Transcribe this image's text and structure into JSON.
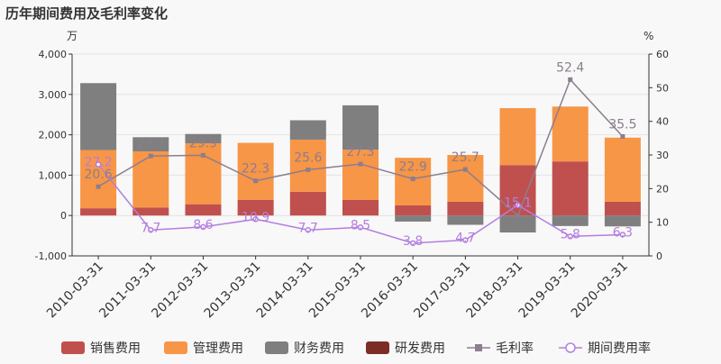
{
  "chart_data": {
    "type": "bar",
    "title": "历年期间费用及毛利率变化",
    "left_unit": "万",
    "right_unit": "%",
    "categories": [
      "2010-03-31",
      "2011-03-31",
      "2012-03-31",
      "2013-03-31",
      "2014-03-31",
      "2015-03-31",
      "2016-03-31",
      "2017-03-31",
      "2018-03-31",
      "2019-03-31",
      "2020-03-31"
    ],
    "left_axis": {
      "min": -1000,
      "max": 4000,
      "ticks": [
        -1000,
        0,
        1000,
        2000,
        3000,
        4000
      ],
      "tick_labels": [
        "-1,000",
        "0",
        "1,000",
        "2,000",
        "3,000",
        "4,000"
      ]
    },
    "right_axis": {
      "min": 0,
      "max": 60,
      "ticks": [
        0,
        10,
        20,
        30,
        40,
        50,
        60
      ],
      "tick_labels": [
        "0",
        "10",
        "20",
        "30",
        "40",
        "50",
        "60"
      ]
    },
    "bar_series": [
      {
        "name": "销售费用",
        "color": "#c0504d",
        "values": [
          180,
          200,
          280,
          390,
          590,
          390,
          250,
          340,
          1250,
          1340,
          340
        ]
      },
      {
        "name": "管理费用",
        "color": "#f79646",
        "values": [
          1440,
          1390,
          1510,
          1410,
          1290,
          1240,
          1180,
          1160,
          1410,
          1360,
          1590
        ]
      },
      {
        "name": "财务费用",
        "color": "#7f7f7f",
        "values": [
          1660,
          350,
          230,
          0,
          480,
          1100,
          -150,
          -230,
          -420,
          -260,
          -270
        ]
      },
      {
        "name": "研发费用",
        "color": "#7b2d26",
        "values": [
          0,
          0,
          0,
          0,
          0,
          0,
          0,
          0,
          0,
          0,
          0
        ]
      }
    ],
    "line_series": [
      {
        "name": "毛利率",
        "color": "#8c7d8f",
        "values": [
          20.6,
          29.7,
          29.9,
          22.3,
          25.6,
          27.3,
          22.9,
          25.7,
          12.0,
          52.4,
          35.5
        ],
        "labels": [
          "20.6",
          "29.7",
          "29.9",
          "22.3",
          "25.6",
          "27.3",
          "22.9",
          "25.7",
          "",
          "52.4",
          "35.5"
        ]
      },
      {
        "name": "期间费用率",
        "color": "#b37ee0",
        "values": [
          27.2,
          7.7,
          8.6,
          10.9,
          7.7,
          8.5,
          3.8,
          4.7,
          15.1,
          5.8,
          6.3
        ],
        "labels": [
          "27.2",
          "7.7",
          "8.6",
          "10.9",
          "7.7",
          "8.5",
          "3.8",
          "4.7",
          "15.1",
          "5.8",
          "6.3"
        ]
      }
    ],
    "legend_position": "bottom"
  }
}
